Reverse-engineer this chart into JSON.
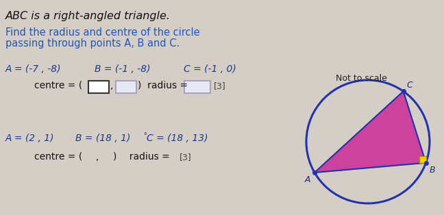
{
  "bg_color": "#d5cec6",
  "title_text": "ABC is a right-angled triangle.",
  "subtitle_color": "#2255bb",
  "subtitle_line1": "Find the radius and centre of the circle",
  "subtitle_line2": "passing through points A, B and C.",
  "not_to_scale": "Not to scale",
  "coords_color": "#1a3a8a",
  "q1_A": "A = (-7 , -8)",
  "q1_B": "B = (-1 , -8)",
  "q1_C": "C = (-1 , 0)",
  "q2_A": "A = (2 , 1)",
  "q2_B": "B = (18 , 1)",
  "q2_C": "C = (18 , 13)",
  "marks": "[3]",
  "circle_color": "#2233aa",
  "triangle_fill": "#cc3399",
  "right_angle_color": "#ffcc00",
  "label_color": "#1a2a7a",
  "box1_edge": "#333333",
  "box1_face": "#ffffff",
  "box2_edge": "#9999bb",
  "box2_face": "#e8e8f5",
  "box3_edge": "#9999bb",
  "box3_face": "#e8e8f5",
  "font_size_title": 11.5,
  "font_size_sub": 10.5,
  "font_size_coords": 10,
  "font_size_answer": 10,
  "font_size_small": 9,
  "font_size_label": 9
}
